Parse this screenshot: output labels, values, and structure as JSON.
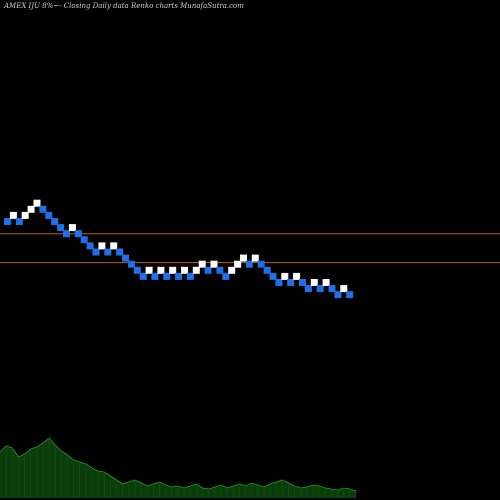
{
  "title": "AMEX  IJU  8%~-  Closing Daily data  Renko  charts MunafaSutra.com",
  "chart_data": {
    "type": "renko",
    "bricks": [
      {
        "col": 0,
        "lvl": 0,
        "dir": "down"
      },
      {
        "col": 1,
        "lvl": 1,
        "dir": "up"
      },
      {
        "col": 2,
        "lvl": 0,
        "dir": "down"
      },
      {
        "col": 3,
        "lvl": 1,
        "dir": "up"
      },
      {
        "col": 4,
        "lvl": 2,
        "dir": "up"
      },
      {
        "col": 5,
        "lvl": 3,
        "dir": "up"
      },
      {
        "col": 6,
        "lvl": 2,
        "dir": "down"
      },
      {
        "col": 7,
        "lvl": 1,
        "dir": "down"
      },
      {
        "col": 8,
        "lvl": 0,
        "dir": "down"
      },
      {
        "col": 9,
        "lvl": -1,
        "dir": "down"
      },
      {
        "col": 10,
        "lvl": -2,
        "dir": "down"
      },
      {
        "col": 11,
        "lvl": -1,
        "dir": "up"
      },
      {
        "col": 12,
        "lvl": -2,
        "dir": "down"
      },
      {
        "col": 13,
        "lvl": -3,
        "dir": "down"
      },
      {
        "col": 14,
        "lvl": -4,
        "dir": "down"
      },
      {
        "col": 15,
        "lvl": -5,
        "dir": "down"
      },
      {
        "col": 16,
        "lvl": -4,
        "dir": "up"
      },
      {
        "col": 17,
        "lvl": -5,
        "dir": "down"
      },
      {
        "col": 18,
        "lvl": -4,
        "dir": "up"
      },
      {
        "col": 19,
        "lvl": -5,
        "dir": "down"
      },
      {
        "col": 20,
        "lvl": -6,
        "dir": "down"
      },
      {
        "col": 21,
        "lvl": -7,
        "dir": "down"
      },
      {
        "col": 22,
        "lvl": -8,
        "dir": "down"
      },
      {
        "col": 23,
        "lvl": -9,
        "dir": "down"
      },
      {
        "col": 24,
        "lvl": -8,
        "dir": "up"
      },
      {
        "col": 25,
        "lvl": -9,
        "dir": "down"
      },
      {
        "col": 26,
        "lvl": -8,
        "dir": "up"
      },
      {
        "col": 27,
        "lvl": -9,
        "dir": "down"
      },
      {
        "col": 28,
        "lvl": -8,
        "dir": "up"
      },
      {
        "col": 29,
        "lvl": -9,
        "dir": "down"
      },
      {
        "col": 30,
        "lvl": -8,
        "dir": "up"
      },
      {
        "col": 31,
        "lvl": -9,
        "dir": "down"
      },
      {
        "col": 32,
        "lvl": -8,
        "dir": "up"
      },
      {
        "col": 33,
        "lvl": -7,
        "dir": "up"
      },
      {
        "col": 34,
        "lvl": -8,
        "dir": "down"
      },
      {
        "col": 35,
        "lvl": -7,
        "dir": "up"
      },
      {
        "col": 36,
        "lvl": -8,
        "dir": "down"
      },
      {
        "col": 37,
        "lvl": -9,
        "dir": "down"
      },
      {
        "col": 38,
        "lvl": -8,
        "dir": "up"
      },
      {
        "col": 39,
        "lvl": -7,
        "dir": "up"
      },
      {
        "col": 40,
        "lvl": -6,
        "dir": "up"
      },
      {
        "col": 41,
        "lvl": -7,
        "dir": "down"
      },
      {
        "col": 42,
        "lvl": -6,
        "dir": "up"
      },
      {
        "col": 43,
        "lvl": -7,
        "dir": "down"
      },
      {
        "col": 44,
        "lvl": -8,
        "dir": "down"
      },
      {
        "col": 45,
        "lvl": -9,
        "dir": "down"
      },
      {
        "col": 46,
        "lvl": -10,
        "dir": "down"
      },
      {
        "col": 47,
        "lvl": -9,
        "dir": "up"
      },
      {
        "col": 48,
        "lvl": -10,
        "dir": "down"
      },
      {
        "col": 49,
        "lvl": -9,
        "dir": "up"
      },
      {
        "col": 50,
        "lvl": -10,
        "dir": "down"
      },
      {
        "col": 51,
        "lvl": -11,
        "dir": "down"
      },
      {
        "col": 52,
        "lvl": -10,
        "dir": "up"
      },
      {
        "col": 53,
        "lvl": -11,
        "dir": "down"
      },
      {
        "col": 54,
        "lvl": -10,
        "dir": "up"
      },
      {
        "col": 55,
        "lvl": -11,
        "dir": "down"
      },
      {
        "col": 56,
        "lvl": -12,
        "dir": "down"
      },
      {
        "col": 57,
        "lvl": -11,
        "dir": "up"
      },
      {
        "col": 58,
        "lvl": -12,
        "dir": "down"
      }
    ],
    "reference_lines": [
      {
        "name": "upper",
        "level": -2.0
      },
      {
        "name": "lower",
        "level": -6.75
      }
    ],
    "colors": {
      "up": "#ffffff",
      "down": "#1e6fe8",
      "reference_line": "#b4641e",
      "volume_area": "#0b3d0b",
      "volume_line": "#2a9a2a",
      "background": "#000000"
    },
    "volume": [
      46,
      52,
      50,
      41,
      44,
      49,
      51,
      55,
      60,
      53,
      47,
      43,
      38,
      36,
      34,
      30,
      27,
      26,
      22,
      18,
      14,
      16,
      18,
      15,
      12,
      14,
      16,
      13,
      11,
      12,
      10,
      12,
      14,
      10,
      9,
      11,
      13,
      10,
      12,
      14,
      12,
      15,
      13,
      11,
      14,
      16,
      18,
      15,
      12,
      10,
      11,
      13,
      12,
      10,
      9,
      8,
      10,
      9,
      7
    ]
  }
}
